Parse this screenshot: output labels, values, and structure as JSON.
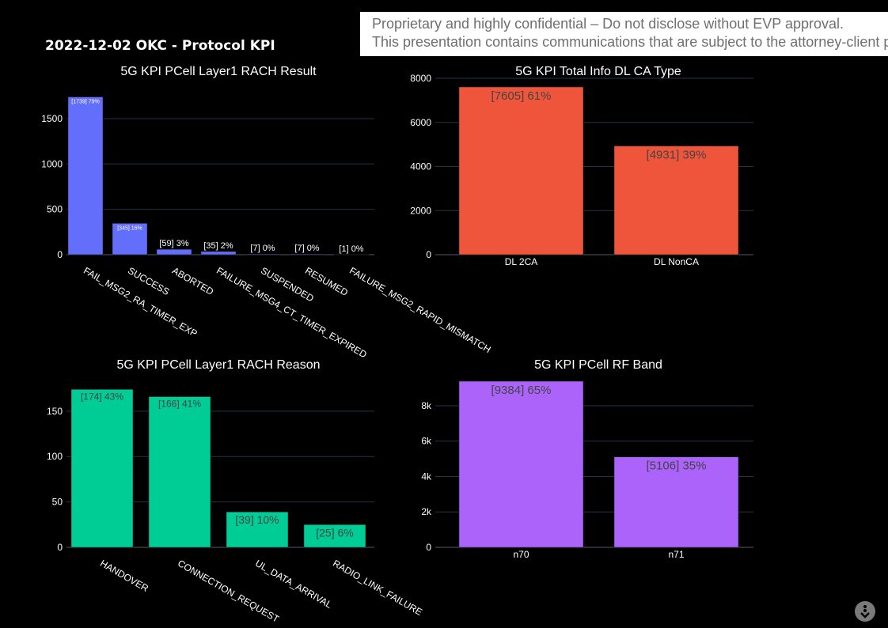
{
  "banner": {
    "line1": "Proprietary and highly confidential – Do not disclose without EVP approval.",
    "line2": "This presentation contains communications that are subject to the attorney-client privilege"
  },
  "page_title": "2022-12-02 OKC - Protocol KPI",
  "menu_icon": "chevron-down-icon",
  "chart_data": [
    {
      "type": "bar",
      "title": "5G KPI PCell Layer1 RACH Result",
      "color": "#636efa",
      "categories": [
        "FAIL_MSG2_RA_TIMER_EXP",
        "SUCCESS",
        "ABORTED",
        "FAILURE_MSG4_CT_TIMER_EXPIRED",
        "SUSPENDED",
        "RESUMED",
        "FAILURE_MSG2_RAPID_MISMATCH"
      ],
      "values": [
        1739,
        345,
        59,
        35,
        7,
        7,
        1
      ],
      "labels": [
        "[1739]  79%",
        "[345]  16%",
        "[59]  3%",
        "[35]  2%",
        "[7]  0%",
        "[7]  0%",
        "[1]  0%"
      ],
      "yticks": [
        "0",
        "500",
        "1000",
        "1500"
      ],
      "ylim": [
        0,
        1831
      ]
    },
    {
      "type": "bar",
      "title": "5G KPI Total Info DL CA Type",
      "color": "#ef553b",
      "categories": [
        "DL 2CA",
        "DL NonCA"
      ],
      "values": [
        7605,
        4931
      ],
      "labels": [
        "[7605]  61%",
        "[4931]  39%"
      ],
      "yticks": [
        "0",
        "2000",
        "4000",
        "6000",
        "8000"
      ],
      "ylim": [
        0,
        8000
      ]
    },
    {
      "type": "bar",
      "title": "5G KPI PCell Layer1 RACH Reason",
      "color": "#00cc96",
      "categories": [
        "HANDOVER",
        "CONNECTION_REQUEST",
        "UL_DATA_ARRIVAL",
        "RADIO_LINK_FAILURE"
      ],
      "values": [
        174,
        166,
        39,
        25
      ],
      "labels": [
        "[174]  43%",
        "[166]  41%",
        "[39]  10%",
        "[25]  6%"
      ],
      "yticks": [
        "0",
        "50",
        "100",
        "150"
      ],
      "ylim": [
        0,
        183
      ]
    },
    {
      "type": "bar",
      "title": "5G KPI PCell RF Band",
      "color": "#ab63fa",
      "categories": [
        "n70",
        "n71"
      ],
      "values": [
        9384,
        5106
      ],
      "labels": [
        "[9384]  65%",
        "[5106]  35%"
      ],
      "yticks": [
        "0",
        "2k",
        "4k",
        "6k",
        "8k"
      ],
      "ylim": [
        0,
        9384
      ]
    }
  ]
}
